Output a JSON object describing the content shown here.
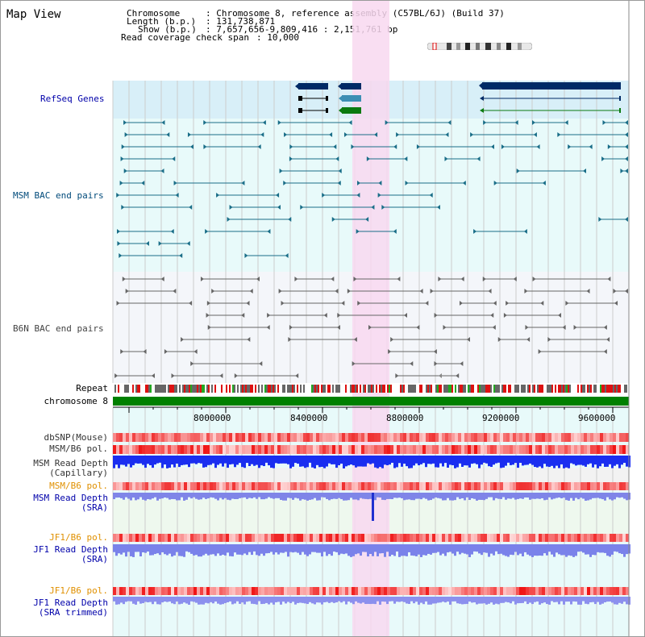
{
  "title": "Map View",
  "header": {
    "chromosome_key": "Chromosome",
    "chromosome_val": ": Chromosome 8, reference assembly (C57BL/6J) (Build 37)",
    "length_key": "Length (b.p.)",
    "length_val": ": 131,738,871",
    "show_key": "Show (b.p.)",
    "show_val": ": 7,657,656-9,809,416 : 2,151,761 bp",
    "span_key": "Read coverage check span",
    "span_val": ": 10,000"
  },
  "tracks": {
    "refseq": "RefSeq Genes",
    "msm_bac": "MSM BAC end pairs",
    "b6n_bac": "B6N BAC end pairs",
    "repeat": "Repeat",
    "chrom": "chromosome 8",
    "dbsnp": "dbSNP(Mouse)",
    "msm_b6_pol_1": "MSM/B6 pol.",
    "msm_rd_cap_1": "MSM Read Depth",
    "msm_rd_cap_2": "(Capillary)",
    "msm_b6_pol_2": "MSM/B6 pol.",
    "msm_rd_sra_1": "MSM Read Depth",
    "msm_rd_sra_2": "(SRA)",
    "jf1_b6_pol_1": "JF1/B6 pol.",
    "jf1_rd_sra_1": "JF1 Read Depth",
    "jf1_rd_sra_2": "(SRA)",
    "jf1_b6_pol_2": "JF1/B6 pol.",
    "jf1_rd_trim_1": "JF1 Read Depth",
    "jf1_rd_trim_2": "(SRA trimmed)"
  },
  "axis": {
    "ticks": [
      "8000000",
      "8400000",
      "8800000",
      "9200000",
      "9600000"
    ]
  },
  "colors": {
    "label_blue": "#0000aa",
    "label_orange": "#e09000",
    "highlight": "#f8d8f0",
    "refseq_bg": "#d8eff8",
    "bac_bg": "#e8fafa",
    "chrom_green": "#008000"
  }
}
